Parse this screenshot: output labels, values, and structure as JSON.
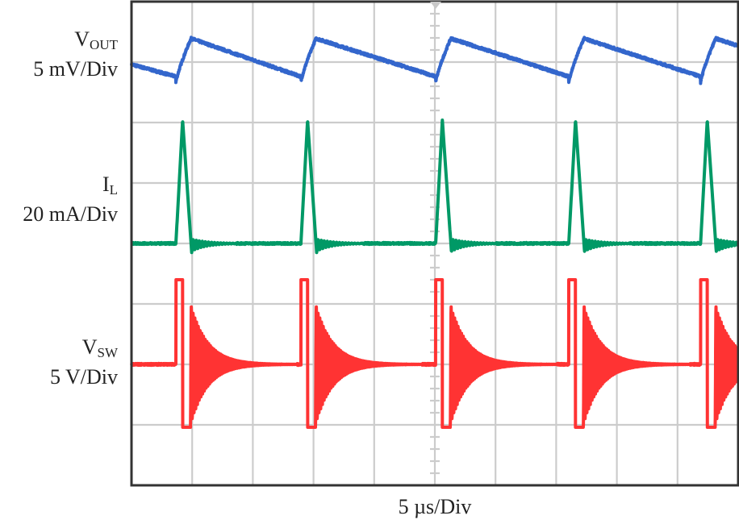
{
  "chart_data": {
    "type": "line",
    "title": "",
    "xlabel": "5 µs/Div",
    "time_per_div_us": 5,
    "xlim_us": [
      0,
      50
    ],
    "ylim_div": [
      -4,
      4
    ],
    "grid": true,
    "grid_divisions": {
      "x": 10,
      "y": 8
    },
    "colors": {
      "grid": "#cccccc",
      "frame": "#333333"
    },
    "switching_events_us": [
      3.66,
      13.96,
      25.07,
      36.04,
      46.9
    ],
    "series": [
      {
        "name": "V",
        "sub": "OUT",
        "scale": "5 mV/Div",
        "color": "#3366cc",
        "ripple_peak_div": 3.39,
        "ripple_valley_div": 2.76
      },
      {
        "name": "I",
        "sub": "L",
        "scale": "20 mA/Div",
        "color": "#009966",
        "baseline_div": 0.0,
        "peak_div": 2.04
      },
      {
        "name": "V",
        "sub": "SW",
        "scale": "5 V/Div",
        "color": "#ff3333",
        "baseline_div": -2.0,
        "high_div": -0.6,
        "low_div": -3.04,
        "ring_start_div": -1.0
      }
    ]
  }
}
